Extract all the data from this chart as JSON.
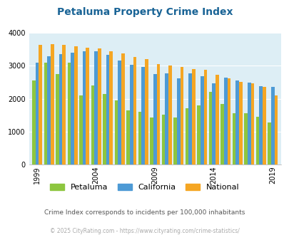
{
  "title": "Petaluma Property Crime Index",
  "years": [
    1999,
    2000,
    2001,
    2002,
    2003,
    2004,
    2005,
    2006,
    2007,
    2008,
    2009,
    2010,
    2011,
    2012,
    2013,
    2014,
    2015,
    2016,
    2017,
    2018,
    2019
  ],
  "petaluma": [
    2550,
    3100,
    2750,
    3100,
    2100,
    2400,
    2150,
    1950,
    1650,
    1600,
    1430,
    1520,
    1430,
    1700,
    1800,
    2200,
    1830,
    1560,
    1550,
    1450,
    1270
  ],
  "california": [
    3100,
    3300,
    3350,
    3400,
    3440,
    3440,
    3330,
    3170,
    3020,
    2960,
    2750,
    2770,
    2610,
    2780,
    2680,
    2470,
    2640,
    2560,
    2490,
    2380,
    2360
  ],
  "national": [
    3630,
    3650,
    3630,
    3600,
    3560,
    3530,
    3440,
    3380,
    3260,
    3210,
    3060,
    3000,
    2960,
    2900,
    2870,
    2720,
    2620,
    2510,
    2460,
    2360,
    2100
  ],
  "bar_colors": {
    "petaluma": "#8dc63f",
    "california": "#4d9ad5",
    "national": "#f5a623"
  },
  "ylim": [
    0,
    4000
  ],
  "yticks": [
    0,
    1000,
    2000,
    3000,
    4000
  ],
  "bg_color": "#ddeef5",
  "title_color": "#1a6496",
  "subtitle": "Crime Index corresponds to incidents per 100,000 inhabitants",
  "footer": "© 2025 CityRating.com - https://www.cityrating.com/crime-statistics/",
  "subtitle_color": "#555555",
  "footer_color": "#aaaaaa"
}
